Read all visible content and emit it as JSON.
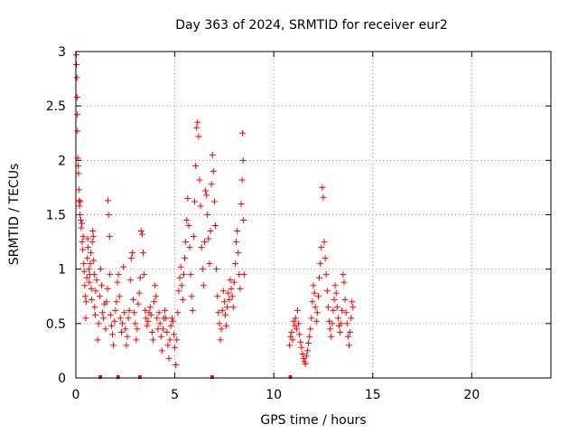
{
  "chart_data": {
    "type": "scatter",
    "title": "Day 363 of 2024, SRMTID for receiver eur2",
    "xlabel": "GPS time / hours",
    "ylabel": "SRMTID / TECUs",
    "xlim": [
      0,
      24
    ],
    "ylim": [
      0,
      3
    ],
    "xticks": [
      0,
      5,
      10,
      15,
      20
    ],
    "yticks": [
      0,
      0.5,
      1,
      1.5,
      2,
      2.5,
      3
    ],
    "xtick_labels": [
      "0",
      "5",
      "10",
      "15",
      "20"
    ],
    "ytick_labels": [
      "0",
      "0.5",
      "1",
      "1.5",
      "2",
      "2.5",
      "3"
    ],
    "grid": true,
    "marker_color": "#ff0000",
    "series": [
      {
        "name": "SRMTID",
        "marker": "plus",
        "points": [
          [
            0.02,
            2.97
          ],
          [
            0.03,
            2.88
          ],
          [
            0.05,
            2.76
          ],
          [
            0.06,
            2.58
          ],
          [
            0.07,
            2.42
          ],
          [
            0.08,
            2.27
          ],
          [
            0.1,
            2.02
          ],
          [
            0.12,
            1.95
          ],
          [
            0.13,
            1.88
          ],
          [
            0.15,
            1.73
          ],
          [
            0.17,
            1.63
          ],
          [
            0.18,
            1.58
          ],
          [
            0.2,
            1.5
          ],
          [
            0.22,
            1.62
          ],
          [
            0.25,
            1.45
          ],
          [
            0.27,
            1.38
          ],
          [
            0.3,
            1.42
          ],
          [
            0.32,
            1.25
          ],
          [
            0.35,
            1.18
          ],
          [
            0.37,
            1.3
          ],
          [
            0.4,
            1.05
          ],
          [
            0.42,
            0.98
          ],
          [
            0.45,
            0.85
          ],
          [
            0.47,
            0.75
          ],
          [
            0.5,
            0.55
          ],
          [
            0.52,
            0.7
          ],
          [
            0.55,
            0.92
          ],
          [
            0.58,
            1.1
          ],
          [
            0.6,
            1.28
          ],
          [
            0.62,
            1.2
          ],
          [
            0.65,
            1.0
          ],
          [
            0.68,
            0.88
          ],
          [
            0.7,
            0.95
          ],
          [
            0.73,
            1.05
          ],
          [
            0.75,
            1.15
          ],
          [
            0.78,
            0.82
          ],
          [
            0.8,
            0.72
          ],
          [
            0.83,
            1.25
          ],
          [
            0.85,
            1.35
          ],
          [
            0.88,
            1.3
          ],
          [
            0.9,
            1.08
          ],
          [
            0.93,
            0.95
          ],
          [
            0.95,
            0.65
          ],
          [
            0.98,
            0.58
          ],
          [
            1.0,
            0.8
          ],
          [
            1.05,
            0.9
          ],
          [
            1.1,
            0.35
          ],
          [
            1.15,
            0.5
          ],
          [
            1.2,
            0.75
          ],
          [
            1.25,
            1.0
          ],
          [
            1.3,
            0.85
          ],
          [
            1.35,
            0.6
          ],
          [
            1.4,
            0.55
          ],
          [
            1.45,
            0.68
          ],
          [
            1.5,
            0.45
          ],
          [
            1.55,
            0.7
          ],
          [
            1.6,
            0.82
          ],
          [
            1.62,
            1.63
          ],
          [
            1.65,
            1.5
          ],
          [
            1.7,
            1.3
          ],
          [
            1.72,
            0.95
          ],
          [
            1.75,
            0.58
          ],
          [
            1.8,
            0.48
          ],
          [
            1.85,
            0.4
          ],
          [
            1.9,
            0.3
          ],
          [
            1.95,
            0.52
          ],
          [
            2.0,
            0.62
          ],
          [
            2.05,
            0.7
          ],
          [
            2.1,
            0.88
          ],
          [
            2.15,
            0.95
          ],
          [
            2.2,
            0.75
          ],
          [
            2.25,
            0.55
          ],
          [
            2.3,
            0.42
          ],
          [
            2.35,
            0.5
          ],
          [
            2.4,
            1.02
          ],
          [
            2.45,
            0.6
          ],
          [
            2.5,
            0.45
          ],
          [
            2.55,
            0.3
          ],
          [
            2.6,
            0.38
          ],
          [
            2.65,
            0.55
          ],
          [
            2.7,
            0.62
          ],
          [
            2.75,
            0.9
          ],
          [
            2.8,
            1.1
          ],
          [
            2.85,
            1.15
          ],
          [
            2.9,
            0.72
          ],
          [
            2.95,
            0.6
          ],
          [
            3.0,
            0.5
          ],
          [
            3.05,
            0.35
          ],
          [
            3.1,
            0.45
          ],
          [
            3.15,
            0.68
          ],
          [
            3.2,
            0.78
          ],
          [
            3.25,
            0.92
          ],
          [
            3.3,
            1.35
          ],
          [
            3.35,
            1.32
          ],
          [
            3.4,
            1.15
          ],
          [
            3.45,
            0.95
          ],
          [
            3.5,
            0.62
          ],
          [
            3.55,
            0.55
          ],
          [
            3.6,
            0.48
          ],
          [
            3.65,
            0.52
          ],
          [
            3.7,
            0.6
          ],
          [
            3.75,
            0.65
          ],
          [
            3.8,
            0.58
          ],
          [
            3.85,
            0.42
          ],
          [
            3.9,
            0.35
          ],
          [
            3.95,
            0.7
          ],
          [
            4.0,
            0.85
          ],
          [
            4.05,
            0.75
          ],
          [
            4.1,
            0.55
          ],
          [
            4.15,
            0.45
          ],
          [
            4.2,
            0.6
          ],
          [
            4.25,
            0.5
          ],
          [
            4.3,
            0.38
          ],
          [
            4.35,
            0.25
          ],
          [
            4.4,
            0.45
          ],
          [
            4.45,
            0.55
          ],
          [
            4.5,
            0.62
          ],
          [
            4.55,
            0.55
          ],
          [
            4.6,
            0.42
          ],
          [
            4.65,
            0.3
          ],
          [
            4.7,
            0.18
          ],
          [
            4.75,
            0.35
          ],
          [
            4.8,
            0.48
          ],
          [
            4.85,
            0.55
          ],
          [
            4.9,
            0.52
          ],
          [
            4.95,
            0.4
          ],
          [
            5.0,
            0.28
          ],
          [
            5.05,
            0.12
          ],
          [
            5.1,
            0.35
          ],
          [
            5.15,
            0.6
          ],
          [
            5.2,
            0.8
          ],
          [
            5.25,
            0.92
          ],
          [
            5.3,
            1.02
          ],
          [
            5.35,
            0.85
          ],
          [
            5.4,
            0.72
          ],
          [
            5.45,
            0.95
          ],
          [
            5.5,
            1.1
          ],
          [
            5.55,
            1.25
          ],
          [
            5.6,
            1.45
          ],
          [
            5.65,
            1.65
          ],
          [
            5.7,
            1.4
          ],
          [
            5.75,
            1.2
          ],
          [
            5.8,
            0.95
          ],
          [
            5.85,
            0.75
          ],
          [
            5.9,
            0.62
          ],
          [
            5.95,
            1.3
          ],
          [
            6.0,
            1.62
          ],
          [
            6.05,
            1.95
          ],
          [
            6.1,
            2.3
          ],
          [
            6.15,
            2.35
          ],
          [
            6.2,
            2.22
          ],
          [
            6.25,
            1.82
          ],
          [
            6.3,
            1.58
          ],
          [
            6.35,
            1.2
          ],
          [
            6.4,
            1.0
          ],
          [
            6.45,
            0.85
          ],
          [
            6.5,
            1.25
          ],
          [
            6.55,
            1.72
          ],
          [
            6.6,
            1.68
          ],
          [
            6.65,
            1.5
          ],
          [
            6.7,
            1.28
          ],
          [
            6.75,
            1.05
          ],
          [
            6.8,
            1.35
          ],
          [
            6.85,
            1.78
          ],
          [
            6.9,
            2.05
          ],
          [
            6.95,
            1.9
          ],
          [
            7.0,
            1.62
          ],
          [
            7.05,
            1.4
          ],
          [
            7.1,
            1.0
          ],
          [
            7.15,
            0.75
          ],
          [
            7.2,
            0.6
          ],
          [
            7.25,
            0.5
          ],
          [
            7.3,
            0.35
          ],
          [
            7.35,
            0.45
          ],
          [
            7.4,
            0.62
          ],
          [
            7.45,
            0.8
          ],
          [
            7.5,
            0.7
          ],
          [
            7.55,
            0.58
          ],
          [
            7.6,
            0.48
          ],
          [
            7.65,
            0.65
          ],
          [
            7.7,
            0.78
          ],
          [
            7.75,
            0.72
          ],
          [
            7.8,
            0.9
          ],
          [
            7.85,
            0.82
          ],
          [
            7.9,
            0.75
          ],
          [
            7.95,
            0.65
          ],
          [
            8.0,
            0.88
          ],
          [
            8.05,
            1.05
          ],
          [
            8.1,
            1.25
          ],
          [
            8.15,
            1.35
          ],
          [
            8.2,
            1.15
          ],
          [
            8.25,
            0.95
          ],
          [
            8.3,
            0.82
          ],
          [
            8.35,
            1.6
          ],
          [
            8.4,
            1.82
          ],
          [
            8.42,
            2.25
          ],
          [
            8.45,
            2.0
          ],
          [
            8.47,
            1.45
          ],
          [
            8.5,
            0.95
          ],
          [
            10.8,
            0.3
          ],
          [
            10.85,
            0.38
          ],
          [
            10.9,
            0.42
          ],
          [
            10.95,
            0.35
          ],
          [
            11.0,
            0.52
          ],
          [
            11.05,
            0.48
          ],
          [
            11.1,
            0.55
          ],
          [
            11.15,
            0.45
          ],
          [
            11.2,
            0.62
          ],
          [
            11.25,
            0.5
          ],
          [
            11.3,
            0.4
          ],
          [
            11.35,
            0.33
          ],
          [
            11.4,
            0.28
          ],
          [
            11.45,
            0.22
          ],
          [
            11.5,
            0.18
          ],
          [
            11.55,
            0.15
          ],
          [
            11.6,
            0.13
          ],
          [
            11.65,
            0.2
          ],
          [
            11.7,
            0.25
          ],
          [
            11.75,
            0.32
          ],
          [
            11.8,
            0.38
          ],
          [
            11.85,
            0.45
          ],
          [
            11.9,
            0.55
          ],
          [
            11.95,
            0.7
          ],
          [
            12.0,
            0.85
          ],
          [
            12.05,
            0.78
          ],
          [
            12.1,
            0.65
          ],
          [
            12.15,
            0.52
          ],
          [
            12.2,
            0.6
          ],
          [
            12.25,
            0.75
          ],
          [
            12.3,
            0.92
          ],
          [
            12.35,
            1.05
          ],
          [
            12.4,
            1.2
          ],
          [
            12.45,
            1.75
          ],
          [
            12.5,
            1.66
          ],
          [
            12.55,
            1.25
          ],
          [
            12.6,
            1.1
          ],
          [
            12.65,
            0.95
          ],
          [
            12.7,
            0.8
          ],
          [
            12.75,
            0.65
          ],
          [
            12.8,
            0.52
          ],
          [
            12.85,
            0.45
          ],
          [
            12.9,
            0.38
          ],
          [
            12.95,
            0.5
          ],
          [
            13.0,
            0.62
          ],
          [
            13.05,
            0.72
          ],
          [
            13.1,
            0.85
          ],
          [
            13.15,
            0.78
          ],
          [
            13.2,
            0.65
          ],
          [
            13.25,
            0.55
          ],
          [
            13.3,
            0.48
          ],
          [
            13.35,
            0.42
          ],
          [
            13.4,
            0.5
          ],
          [
            13.45,
            0.62
          ],
          [
            13.5,
            0.95
          ],
          [
            13.55,
            0.88
          ],
          [
            13.6,
            0.72
          ],
          [
            13.65,
            0.6
          ],
          [
            13.7,
            0.5
          ],
          [
            13.75,
            0.38
          ],
          [
            13.8,
            0.3
          ],
          [
            13.85,
            0.42
          ],
          [
            13.9,
            0.55
          ],
          [
            13.95,
            0.7
          ],
          [
            14.0,
            0.65
          ]
        ]
      }
    ],
    "baseline_markers": [
      {
        "x_start": 1.15,
        "x_end": 1.32
      },
      {
        "x_start": 2.05,
        "x_end": 2.22
      },
      {
        "x_start": 3.15,
        "x_end": 3.32
      },
      {
        "x_start": 6.8,
        "x_end": 6.97
      },
      {
        "x_start": 10.75,
        "x_end": 10.92
      }
    ]
  }
}
